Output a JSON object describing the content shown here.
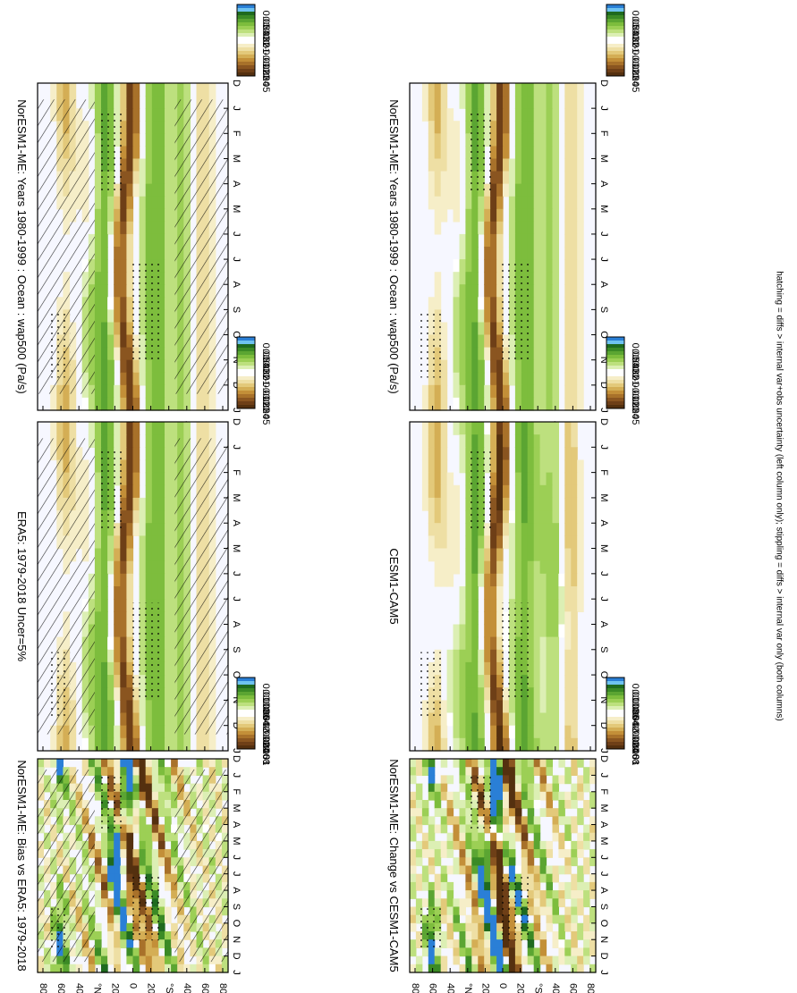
{
  "figure": {
    "footnote": "hatching = diffs > internal var+obs uncertainty (left column only); stippling = diffs > internal var only (both columns)"
  },
  "chart_data": [
    {
      "type": "heatmap",
      "title": "NorESM1-ME: Years 1980-1999 : Ocean : wap500 (Pa/s)",
      "x_ticks": [
        "D",
        "J",
        "F",
        "M",
        "A",
        "M",
        "J",
        "J",
        "A",
        "S",
        "O",
        "N",
        "D",
        "J"
      ],
      "y_ticks": [
        "80",
        "60",
        "40",
        "°N",
        "20",
        "0",
        "20",
        "°S",
        "40",
        "60",
        "80"
      ],
      "colorbar_ticks": [
        "0.05",
        "0.04",
        "0.03",
        "0.02",
        "0.01",
        "0",
        "-0.01",
        "-0.02",
        "-0.03",
        "-0.04",
        "-0.05"
      ],
      "hatching": true,
      "stippling": true
    },
    {
      "type": "heatmap",
      "title": "ERA5: 1979-2018 Uncer=5%",
      "x_ticks": [
        "D",
        "J",
        "F",
        "M",
        "A",
        "M",
        "J",
        "J",
        "A",
        "S",
        "O",
        "N",
        "D",
        "J"
      ],
      "y_ticks": [
        "80",
        "60",
        "40",
        "°N",
        "20",
        "0",
        "20",
        "°S",
        "40",
        "60",
        "80"
      ],
      "colorbar_ticks": [
        "0.05",
        "0.04",
        "0.03",
        "0.02",
        "0.01",
        "0",
        "-0.01",
        "-0.02",
        "-0.03",
        "-0.04",
        "-0.05"
      ],
      "hatching": true,
      "stippling": true
    },
    {
      "type": "heatmap",
      "title": "NorESM1-ME: Bias vs ERA5: 1979-2018",
      "x_ticks": [
        "D",
        "J",
        "F",
        "M",
        "A",
        "M",
        "J",
        "J",
        "A",
        "S",
        "O",
        "N",
        "D",
        "J"
      ],
      "y_ticks": [
        "80",
        "60",
        "40",
        "°N",
        "20",
        "0",
        "20",
        "°S",
        "40",
        "60",
        "80"
      ],
      "colorbar_ticks": [
        "0.01",
        "0.008",
        "0.006",
        "0.004",
        "0.002",
        "0",
        "-0.002",
        "-0.004",
        "-0.006",
        "-0.008",
        "-0.01"
      ],
      "hatching": true,
      "stippling": true
    },
    {
      "type": "heatmap",
      "title": "NorESM1-ME: Years 1980-1999 : Ocean : wap500 (Pa/s)",
      "x_ticks": [
        "D",
        "J",
        "F",
        "M",
        "A",
        "M",
        "J",
        "J",
        "A",
        "S",
        "O",
        "N",
        "D",
        "J"
      ],
      "y_ticks": [
        "80",
        "60",
        "40",
        "°N",
        "20",
        "0",
        "20",
        "°S",
        "40",
        "60",
        "80"
      ],
      "colorbar_ticks": [
        "0.05",
        "0.04",
        "0.03",
        "0.02",
        "0.01",
        "0",
        "-0.01",
        "-0.02",
        "-0.03",
        "-0.04",
        "-0.05"
      ],
      "hatching": false,
      "stippling": true
    },
    {
      "type": "heatmap",
      "title": "CESM1-CAM5",
      "x_ticks": [
        "D",
        "J",
        "F",
        "M",
        "A",
        "M",
        "J",
        "J",
        "A",
        "S",
        "O",
        "N",
        "D",
        "J"
      ],
      "y_ticks": [
        "80",
        "60",
        "40",
        "°N",
        "20",
        "0",
        "20",
        "°S",
        "40",
        "60",
        "80"
      ],
      "colorbar_ticks": [
        "0.05",
        "0.04",
        "0.03",
        "0.02",
        "0.01",
        "0",
        "-0.01",
        "-0.02",
        "-0.03",
        "-0.04",
        "-0.05"
      ],
      "hatching": false,
      "stippling": true
    },
    {
      "type": "heatmap",
      "title": "NorESM1-ME: Change vs CESM1-CAM5",
      "x_ticks": [
        "D",
        "J",
        "F",
        "M",
        "A",
        "M",
        "J",
        "J",
        "A",
        "S",
        "O",
        "N",
        "D",
        "J"
      ],
      "y_ticks": [
        "80",
        "60",
        "40",
        "°N",
        "20",
        "0",
        "20",
        "°S",
        "40",
        "60",
        "80"
      ],
      "colorbar_ticks": [
        "0.01",
        "0.008",
        "0.006",
        "0.004",
        "0.002",
        "0",
        "-0.002",
        "-0.004",
        "-0.006",
        "-0.008",
        "-0.01"
      ],
      "hatching": false,
      "stippling": true
    }
  ],
  "colors": {
    "palette": [
      "#2a7fd6",
      "#6fc3f0",
      "#1f6a1f",
      "#3b8a25",
      "#5ba532",
      "#7dbd3d",
      "#9ccf55",
      "#bde07e",
      "#dcefb4",
      "#ffffff",
      "#ffffff",
      "#f6eec8",
      "#eedfa4",
      "#e3c97a",
      "#d4ae55",
      "#c38f38",
      "#a8712a",
      "#8a5520",
      "#6e3f17",
      "#54300f"
    ],
    "background": "#f6f7ff"
  }
}
